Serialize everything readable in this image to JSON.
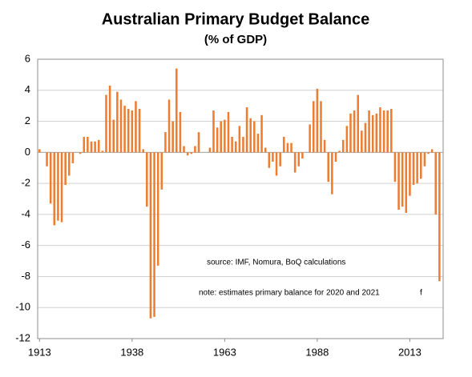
{
  "chart_data": {
    "type": "bar",
    "title": "Australian Primary Budget Balance",
    "subtitle": "(% of GDP)",
    "annotations": [
      "source:  IMF, Nomura, BoQ calculations",
      "note:  estimates primary balance for 2020 and 2021",
      "f"
    ],
    "color": "#ed7d31",
    "x": [
      1913,
      1914,
      1915,
      1916,
      1917,
      1918,
      1919,
      1920,
      1921,
      1922,
      1923,
      1924,
      1925,
      1926,
      1927,
      1928,
      1929,
      1930,
      1931,
      1932,
      1933,
      1934,
      1935,
      1936,
      1937,
      1938,
      1939,
      1940,
      1941,
      1942,
      1943,
      1944,
      1945,
      1946,
      1947,
      1948,
      1949,
      1950,
      1951,
      1952,
      1953,
      1954,
      1955,
      1956,
      1957,
      1958,
      1959,
      1960,
      1961,
      1962,
      1963,
      1964,
      1965,
      1966,
      1967,
      1968,
      1969,
      1970,
      1971,
      1972,
      1973,
      1974,
      1975,
      1976,
      1977,
      1978,
      1979,
      1980,
      1981,
      1982,
      1983,
      1984,
      1985,
      1986,
      1987,
      1988,
      1989,
      1990,
      1991,
      1992,
      1993,
      1994,
      1995,
      1996,
      1997,
      1998,
      1999,
      2000,
      2001,
      2002,
      2003,
      2004,
      2005,
      2006,
      2007,
      2008,
      2009,
      2010,
      2011,
      2012,
      2013,
      2014,
      2015,
      2016,
      2017,
      2018,
      2019,
      2020,
      2021
    ],
    "values": [
      0.2,
      0,
      -0.9,
      -3.3,
      -4.7,
      -4.4,
      -4.5,
      -2.1,
      -1.5,
      -0.7,
      0,
      -0.1,
      1.0,
      1.0,
      0.7,
      0.7,
      0.8,
      0.1,
      3.7,
      4.3,
      2.1,
      3.9,
      3.4,
      3.0,
      2.8,
      2.7,
      3.3,
      2.8,
      0.2,
      -3.5,
      -10.7,
      -10.6,
      -7.3,
      -2.4,
      1.3,
      3.4,
      2.0,
      5.4,
      2.6,
      0.4,
      -0.2,
      -0.1,
      0.4,
      1.3,
      0,
      0,
      0.3,
      2.7,
      1.6,
      2.0,
      2.1,
      2.6,
      1.0,
      0.7,
      1.7,
      1.0,
      2.9,
      2.2,
      2.0,
      1.2,
      2.4,
      0.3,
      -1.0,
      -0.6,
      -1.5,
      -0.9,
      1.0,
      0.6,
      0.6,
      -1.3,
      -0.9,
      -0.4,
      0,
      1.8,
      3.3,
      4.1,
      3.3,
      0.8,
      -1.9,
      -2.7,
      -0.6,
      0.1,
      0.8,
      1.7,
      2.5,
      2.7,
      3.7,
      1.4,
      1.9,
      2.7,
      2.4,
      2.5,
      2.9,
      2.7,
      2.7,
      2.8,
      -1.9,
      -3.7,
      -3.5,
      -3.9,
      -2.8,
      -2.1,
      -2.0,
      -1.7,
      -0.9,
      -0.1,
      0.2,
      -4.0,
      -8.3
    ],
    "xlim": [
      1912.5,
      2022
    ],
    "xticks": [
      1913,
      1938,
      1963,
      1988,
      2013
    ],
    "ylim": [
      -12,
      6
    ],
    "yticks": [
      -12,
      -10,
      -8,
      -6,
      -4,
      -2,
      0,
      2,
      4,
      6
    ],
    "grid": true
  }
}
